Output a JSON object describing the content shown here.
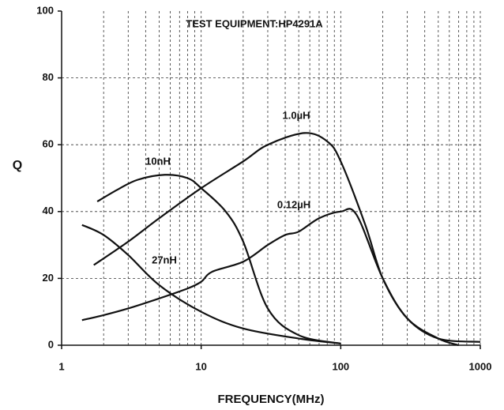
{
  "chart_data": {
    "type": "line",
    "title": "TEST EQUIPMENT:HP4291A",
    "xlabel": "FREQUENCY(MHz)",
    "ylabel": "Q",
    "xscale": "log",
    "xlim": [
      1,
      1000
    ],
    "ylim": [
      0,
      100
    ],
    "xticks": [
      1,
      10,
      100,
      1000
    ],
    "xminorticks": [
      2,
      3,
      4,
      5,
      6,
      7,
      8,
      9,
      20,
      30,
      40,
      50,
      60,
      70,
      80,
      90,
      200,
      300,
      400,
      500,
      600,
      700,
      800,
      900
    ],
    "yticks": [
      0,
      20,
      40,
      60,
      80,
      100
    ],
    "grid": true,
    "series": [
      {
        "name": "10nH",
        "color": "#111111",
        "x": [
          1.8,
          2.5,
          3.5,
          5.5,
          8,
          10,
          15,
          20,
          30,
          50,
          100
        ],
        "values": [
          43,
          46.5,
          49.5,
          51,
          50,
          47,
          40,
          31,
          11,
          3,
          0.5
        ]
      },
      {
        "name": "1.0µH",
        "color": "#111111",
        "x": [
          1.7,
          3,
          5,
          10,
          20,
          30,
          55,
          80,
          100,
          150,
          200,
          300,
          500,
          700
        ],
        "values": [
          24,
          31,
          38,
          47,
          55,
          60,
          63.5,
          61,
          55,
          36,
          20,
          8,
          2,
          0
        ]
      },
      {
        "name": "0.12µH",
        "color": "#111111",
        "x": [
          1.4,
          2,
          3,
          5,
          8,
          10,
          12,
          20,
          30,
          40,
          50,
          70,
          100,
          130,
          200,
          300,
          500,
          1000
        ],
        "values": [
          7.5,
          9,
          11,
          14,
          17,
          19,
          22,
          25,
          30,
          33,
          34,
          38,
          40,
          39,
          20,
          8,
          2,
          1
        ]
      },
      {
        "name": "27nH",
        "color": "#111111",
        "x": [
          1.4,
          2,
          3,
          5,
          10,
          20,
          50,
          100
        ],
        "values": [
          36,
          33,
          27,
          18,
          10,
          5,
          2,
          0.5
        ]
      }
    ]
  }
}
